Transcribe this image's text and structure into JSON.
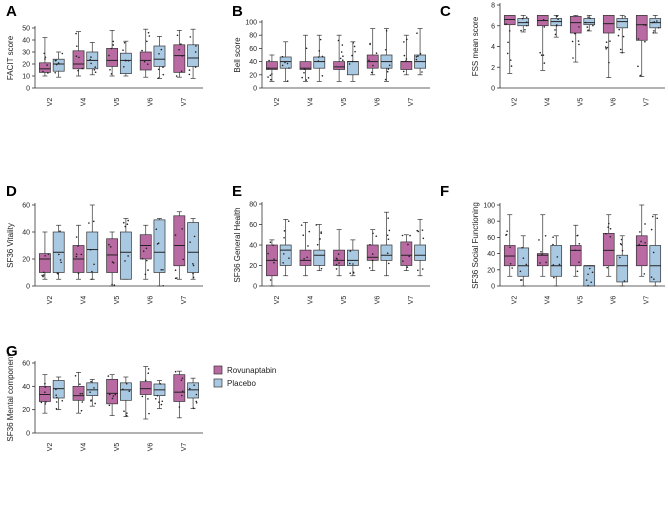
{
  "legend": {
    "items": [
      {
        "name": "Rovunaptabin",
        "color": "#b96aa3"
      },
      {
        "name": "Placebo",
        "color": "#a9c9e3"
      }
    ]
  },
  "chart_data": [
    {
      "letter": "A",
      "type": "box",
      "ylabel": "FACIT score",
      "ylim": [
        0,
        50
      ],
      "yticks": [
        0,
        10,
        20,
        30,
        40,
        50
      ],
      "categories": [
        "V2",
        "V4",
        "V5",
        "V6",
        "V7"
      ],
      "series": [
        {
          "name": "Rovunaptabin",
          "boxes": [
            {
              "min": 10,
              "q1": 13,
              "median": 16,
              "q3": 21,
              "max": 42
            },
            {
              "min": 10,
              "q1": 16,
              "median": 20,
              "q3": 31,
              "max": 47
            },
            {
              "min": 10,
              "q1": 18,
              "median": 23,
              "q3": 33,
              "max": 48
            },
            {
              "min": 9,
              "q1": 15,
              "median": 23,
              "q3": 30,
              "max": 49
            },
            {
              "min": 9,
              "q1": 13,
              "median": 27,
              "q3": 36,
              "max": 48
            }
          ]
        },
        {
          "name": "Placebo",
          "boxes": [
            {
              "min": 9,
              "q1": 14,
              "median": 20,
              "q3": 24,
              "max": 30
            },
            {
              "min": 11,
              "q1": 16,
              "median": 23,
              "q3": 30,
              "max": 38
            },
            {
              "min": 10,
              "q1": 12,
              "median": 23,
              "q3": 29,
              "max": 39
            },
            {
              "min": 8,
              "q1": 18,
              "median": 24,
              "q3": 35,
              "max": 43
            },
            {
              "min": 8,
              "q1": 18,
              "median": 25,
              "q3": 36,
              "max": 49
            }
          ]
        }
      ]
    },
    {
      "letter": "B",
      "type": "box",
      "ylabel": "Bell score",
      "ylim": [
        0,
        100
      ],
      "yticks": [
        0,
        20,
        40,
        60,
        80,
        100
      ],
      "categories": [
        "V2",
        "V4",
        "V5",
        "V6",
        "V7"
      ],
      "series": [
        {
          "name": "Rovunaptabin",
          "boxes": [
            {
              "min": 10,
              "q1": 28,
              "median": 30,
              "q3": 40,
              "max": 50
            },
            {
              "min": 10,
              "q1": 28,
              "median": 30,
              "q3": 40,
              "max": 80
            },
            {
              "min": 10,
              "q1": 28,
              "median": 32,
              "q3": 40,
              "max": 80
            },
            {
              "min": 20,
              "q1": 30,
              "median": 40,
              "q3": 50,
              "max": 90
            },
            {
              "min": 20,
              "q1": 28,
              "median": 40,
              "q3": 40,
              "max": 80
            }
          ]
        },
        {
          "name": "Placebo",
          "boxes": [
            {
              "min": 10,
              "q1": 30,
              "median": 40,
              "q3": 47,
              "max": 70
            },
            {
              "min": 10,
              "q1": 30,
              "median": 40,
              "q3": 47,
              "max": 80
            },
            {
              "min": 10,
              "q1": 20,
              "median": 40,
              "q3": 40,
              "max": 70
            },
            {
              "min": 10,
              "q1": 30,
              "median": 40,
              "q3": 50,
              "max": 90
            },
            {
              "min": 20,
              "q1": 30,
              "median": 40,
              "q3": 50,
              "max": 90
            }
          ]
        }
      ]
    },
    {
      "letter": "C",
      "type": "box",
      "ylabel": "FSS mean score",
      "ylim": [
        0,
        8
      ],
      "yticks": [
        0,
        2,
        4,
        6,
        8
      ],
      "categories": [
        "V2",
        "V4",
        "V5",
        "V6",
        "V7"
      ],
      "series": [
        {
          "name": "Rovunaptabin",
          "boxes": [
            {
              "min": 1.4,
              "q1": 6.1,
              "median": 6.6,
              "q3": 7.0,
              "max": 7.0
            },
            {
              "min": 1.7,
              "q1": 6.0,
              "median": 6.5,
              "q3": 7.0,
              "max": 7.0
            },
            {
              "min": 2.5,
              "q1": 5.3,
              "median": 6.3,
              "q3": 6.9,
              "max": 7.0
            },
            {
              "min": 1.0,
              "q1": 5.3,
              "median": 6.2,
              "q3": 7.0,
              "max": 7.0
            },
            {
              "min": 1.1,
              "q1": 4.6,
              "median": 6.1,
              "q3": 7.0,
              "max": 7.0
            }
          ]
        },
        {
          "name": "Placebo",
          "boxes": [
            {
              "min": 5.4,
              "q1": 6.0,
              "median": 6.3,
              "q3": 6.7,
              "max": 7.0
            },
            {
              "min": 4.9,
              "q1": 6.0,
              "median": 6.4,
              "q3": 6.7,
              "max": 7.0
            },
            {
              "min": 5.5,
              "q1": 6.1,
              "median": 6.3,
              "q3": 6.7,
              "max": 7.0
            },
            {
              "min": 3.4,
              "q1": 5.8,
              "median": 6.4,
              "q3": 6.7,
              "max": 7.0
            },
            {
              "min": 5.3,
              "q1": 5.8,
              "median": 6.3,
              "q3": 6.7,
              "max": 7.0
            }
          ]
        }
      ]
    },
    {
      "letter": "D",
      "type": "box",
      "ylabel": "SF36 Vitality",
      "ylim": [
        0,
        60
      ],
      "yticks": [
        0,
        20,
        40,
        60
      ],
      "categories": [
        "V2",
        "V4",
        "V5",
        "V6",
        "V7"
      ],
      "series": [
        {
          "name": "Rovunaptabin",
          "boxes": [
            {
              "min": 5,
              "q1": 10,
              "median": 20,
              "q3": 24,
              "max": 40
            },
            {
              "min": 5,
              "q1": 10,
              "median": 20,
              "q3": 30,
              "max": 45
            },
            {
              "min": 0,
              "q1": 10,
              "median": 23,
              "q3": 35,
              "max": 40
            },
            {
              "min": 5,
              "q1": 20,
              "median": 30,
              "q3": 38,
              "max": 45
            },
            {
              "min": 5,
              "q1": 15,
              "median": 30,
              "q3": 52,
              "max": 55
            }
          ]
        },
        {
          "name": "Placebo",
          "boxes": [
            {
              "min": 5,
              "q1": 10,
              "median": 25,
              "q3": 40,
              "max": 45
            },
            {
              "min": 5,
              "q1": 10,
              "median": 27,
              "q3": 40,
              "max": 60
            },
            {
              "min": 5,
              "q1": 5,
              "median": 25,
              "q3": 40,
              "max": 50
            },
            {
              "min": 0,
              "q1": 10,
              "median": 25,
              "q3": 49,
              "max": 50
            },
            {
              "min": 5,
              "q1": 10,
              "median": 25,
              "q3": 47,
              "max": 50
            }
          ]
        }
      ]
    },
    {
      "letter": "E",
      "type": "box",
      "ylabel": "SF36 General Health",
      "ylim": [
        0,
        80
      ],
      "yticks": [
        0,
        20,
        40,
        60,
        80
      ],
      "categories": [
        "V2",
        "V4",
        "V5",
        "V6",
        "V7"
      ],
      "series": [
        {
          "name": "Rovunaptabin",
          "boxes": [
            {
              "min": 0,
              "q1": 10,
              "median": 25,
              "q3": 40,
              "max": 45
            },
            {
              "min": 10,
              "q1": 20,
              "median": 25,
              "q3": 35,
              "max": 62
            },
            {
              "min": 10,
              "q1": 20,
              "median": 25,
              "q3": 35,
              "max": 55
            },
            {
              "min": 15,
              "q1": 25,
              "median": 28,
              "q3": 40,
              "max": 55
            },
            {
              "min": 15,
              "q1": 20,
              "median": 30,
              "q3": 43,
              "max": 50
            }
          ]
        },
        {
          "name": "Placebo",
          "boxes": [
            {
              "min": 10,
              "q1": 20,
              "median": 35,
              "q3": 40,
              "max": 65
            },
            {
              "min": 15,
              "q1": 20,
              "median": 30,
              "q3": 35,
              "max": 60
            },
            {
              "min": 10,
              "q1": 20,
              "median": 25,
              "q3": 35,
              "max": 45
            },
            {
              "min": 10,
              "q1": 25,
              "median": 30,
              "q3": 40,
              "max": 72
            },
            {
              "min": 10,
              "q1": 25,
              "median": 30,
              "q3": 40,
              "max": 65
            }
          ]
        }
      ]
    },
    {
      "letter": "F",
      "type": "box",
      "ylabel": "SF36 Social Functioning",
      "ylim": [
        0,
        100
      ],
      "yticks": [
        0,
        20,
        40,
        60,
        80,
        100
      ],
      "categories": [
        "V2",
        "V4",
        "V5",
        "V6",
        "V7"
      ],
      "series": [
        {
          "name": "Rovunaptabin",
          "boxes": [
            {
              "min": 12,
              "q1": 25,
              "median": 37,
              "q3": 50,
              "max": 88
            },
            {
              "min": 12,
              "q1": 25,
              "median": 38,
              "q3": 40,
              "max": 88
            },
            {
              "min": 12,
              "q1": 25,
              "median": 44,
              "q3": 50,
              "max": 75
            },
            {
              "min": 12,
              "q1": 25,
              "median": 44,
              "q3": 65,
              "max": 88
            },
            {
              "min": 12,
              "q1": 25,
              "median": 50,
              "q3": 62,
              "max": 100
            }
          ]
        },
        {
          "name": "Placebo",
          "boxes": [
            {
              "min": 0,
              "q1": 12,
              "median": 25,
              "q3": 47,
              "max": 62
            },
            {
              "min": 0,
              "q1": 12,
              "median": 25,
              "q3": 50,
              "max": 62
            },
            {
              "min": 0,
              "q1": 0,
              "median": 25,
              "q3": 25,
              "max": 25
            },
            {
              "min": 0,
              "q1": 5,
              "median": 25,
              "q3": 38,
              "max": 62
            },
            {
              "min": 0,
              "q1": 5,
              "median": 25,
              "q3": 50,
              "max": 88
            }
          ]
        }
      ]
    },
    {
      "letter": "G",
      "type": "box",
      "ylabel": "SF36 Mental component",
      "ylim": [
        0,
        60
      ],
      "yticks": [
        0,
        20,
        40,
        60
      ],
      "categories": [
        "V2",
        "V4",
        "V5",
        "V6",
        "V7"
      ],
      "series": [
        {
          "name": "Rovunaptabin",
          "boxes": [
            {
              "min": 17,
              "q1": 27,
              "median": 33,
              "q3": 40,
              "max": 50
            },
            {
              "min": 17,
              "q1": 28,
              "median": 32,
              "q3": 40,
              "max": 52
            },
            {
              "min": 15,
              "q1": 25,
              "median": 34,
              "q3": 46,
              "max": 50
            },
            {
              "min": 12,
              "q1": 33,
              "median": 38,
              "q3": 44,
              "max": 57
            },
            {
              "min": 13,
              "q1": 27,
              "median": 35,
              "q3": 50,
              "max": 53
            }
          ]
        },
        {
          "name": "Placebo",
          "boxes": [
            {
              "min": 20,
              "q1": 30,
              "median": 38,
              "q3": 45,
              "max": 48
            },
            {
              "min": 23,
              "q1": 32,
              "median": 37,
              "q3": 43,
              "max": 46
            },
            {
              "min": 14,
              "q1": 28,
              "median": 37,
              "q3": 43,
              "max": 48
            },
            {
              "min": 21,
              "q1": 32,
              "median": 37,
              "q3": 42,
              "max": 45
            },
            {
              "min": 21,
              "q1": 30,
              "median": 37,
              "q3": 43,
              "max": 47
            }
          ]
        }
      ]
    }
  ]
}
